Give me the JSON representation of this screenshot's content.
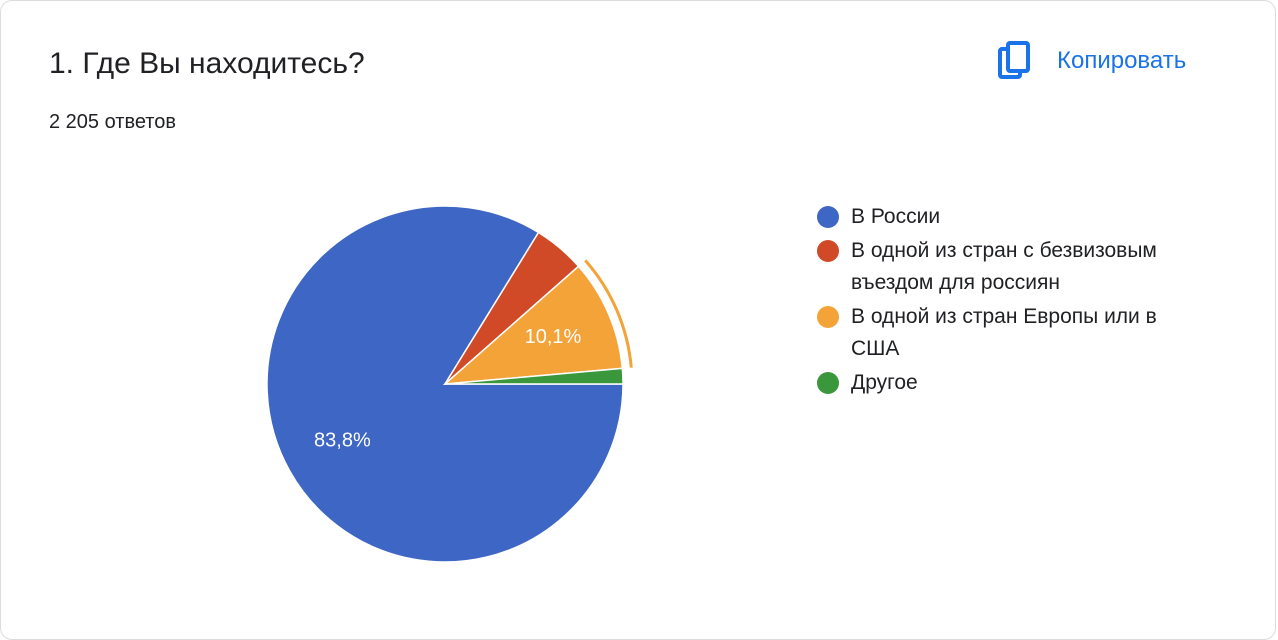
{
  "header": {
    "title": "1. Где Вы находитесь?",
    "responses": "2 205 ответов",
    "copy_button": "Копировать"
  },
  "chart_data": {
    "type": "pie",
    "categories": [
      "В России",
      "В одной из стран с безвизовым въездом для россиян",
      "В одной из стран Европы или в США",
      "Другое"
    ],
    "values": [
      83.8,
      4.7,
      10.1,
      1.4
    ],
    "value_labels": [
      "83,8%",
      null,
      "10,1%",
      null
    ],
    "colors": [
      "#3e66c5",
      "#d04a27",
      "#f4a339",
      "#3b973c"
    ],
    "highlighted": 2
  }
}
